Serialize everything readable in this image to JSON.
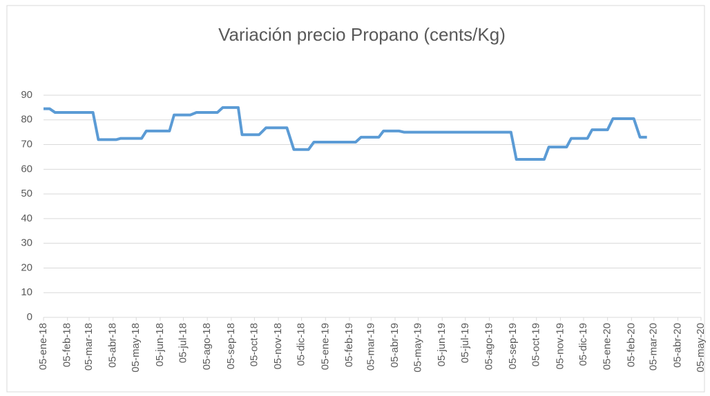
{
  "chart_data": {
    "type": "line",
    "title": "Variación precio Propano (cents/Kg)",
    "x": [
      "2018-01-05",
      "2018-01-13",
      "2018-01-20",
      "2018-03-10",
      "2018-03-17",
      "2018-04-09",
      "2018-04-15",
      "2018-05-12",
      "2018-05-18",
      "2018-06-17",
      "2018-06-23",
      "2018-07-14",
      "2018-07-22",
      "2018-08-18",
      "2018-08-25",
      "2018-09-14",
      "2018-09-19",
      "2018-10-11",
      "2018-10-20",
      "2018-11-16",
      "2018-11-25",
      "2018-12-14",
      "2018-12-21",
      "2019-02-13",
      "2019-02-20",
      "2019-03-15",
      "2019-03-21",
      "2019-04-10",
      "2019-04-17",
      "2019-09-02",
      "2019-09-09",
      "2019-10-15",
      "2019-10-21",
      "2019-11-13",
      "2019-11-19",
      "2019-12-10",
      "2019-12-16",
      "2020-01-05",
      "2020-01-12",
      "2020-02-08",
      "2020-02-16",
      "2020-02-25"
    ],
    "series": [
      {
        "name": "Propano",
        "color": "#5b9bd5",
        "values": [
          84.5,
          84.5,
          83,
          83,
          72,
          72,
          72.5,
          72.5,
          75.5,
          75.5,
          82,
          82,
          83,
          83,
          85,
          85,
          74,
          74,
          76.8,
          76.8,
          68,
          68,
          71,
          71,
          73,
          73,
          75.5,
          75.5,
          75,
          75,
          64,
          64,
          69,
          69,
          72.5,
          72.5,
          76,
          76,
          80.5,
          80.5,
          73,
          73
        ]
      }
    ],
    "xlim": [
      "2018-01-05",
      "2020-05-05"
    ],
    "xticks": [
      {
        "value": "2018-01-05",
        "label": "05-ene-18"
      },
      {
        "value": "2018-02-05",
        "label": "05-feb-18"
      },
      {
        "value": "2018-03-05",
        "label": "05-mar-18"
      },
      {
        "value": "2018-04-05",
        "label": "05-abr-18"
      },
      {
        "value": "2018-05-05",
        "label": "05-may-18"
      },
      {
        "value": "2018-06-05",
        "label": "05-jun-18"
      },
      {
        "value": "2018-07-05",
        "label": "05-jul-18"
      },
      {
        "value": "2018-08-05",
        "label": "05-ago-18"
      },
      {
        "value": "2018-09-05",
        "label": "05-sep-18"
      },
      {
        "value": "2018-10-05",
        "label": "05-oct-18"
      },
      {
        "value": "2018-11-05",
        "label": "05-nov-18"
      },
      {
        "value": "2018-12-05",
        "label": "05-dic-18"
      },
      {
        "value": "2019-01-05",
        "label": "05-ene-19"
      },
      {
        "value": "2019-02-05",
        "label": "05-feb-19"
      },
      {
        "value": "2019-03-05",
        "label": "05-mar-19"
      },
      {
        "value": "2019-04-05",
        "label": "05-abr-19"
      },
      {
        "value": "2019-05-05",
        "label": "05-may-19"
      },
      {
        "value": "2019-06-05",
        "label": "05-jun-19"
      },
      {
        "value": "2019-07-05",
        "label": "05-jul-19"
      },
      {
        "value": "2019-08-05",
        "label": "05-ago-19"
      },
      {
        "value": "2019-09-05",
        "label": "05-sep-19"
      },
      {
        "value": "2019-10-05",
        "label": "05-oct-19"
      },
      {
        "value": "2019-11-05",
        "label": "05-nov-19"
      },
      {
        "value": "2019-12-05",
        "label": "05-dic-19"
      },
      {
        "value": "2020-01-05",
        "label": "05-ene-20"
      },
      {
        "value": "2020-02-05",
        "label": "05-feb-20"
      },
      {
        "value": "2020-03-05",
        "label": "05-mar-20"
      },
      {
        "value": "2020-04-05",
        "label": "05-abr-20"
      },
      {
        "value": "2020-05-05",
        "label": "05-may-20"
      }
    ],
    "ylim": [
      0,
      90
    ],
    "yticks": [
      0,
      10,
      20,
      30,
      40,
      50,
      60,
      70,
      80,
      90
    ],
    "grid": true
  }
}
